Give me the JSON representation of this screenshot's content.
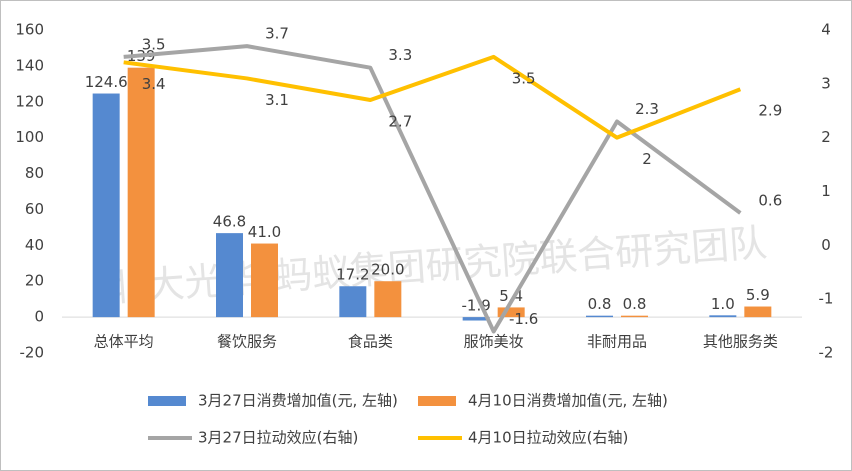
{
  "chart_data": {
    "type": "bar-line",
    "categories": [
      "总体平均",
      "餐饮服务",
      "食品类",
      "服饰美妆",
      "非耐用品",
      "其他服务类"
    ],
    "series": [
      {
        "name": "3月27日消费增加值(元, 左轴)",
        "type": "bar",
        "color": "#5589d0",
        "values": [
          124.6,
          46.8,
          17.2,
          -1.9,
          0.8,
          1.0
        ],
        "value_labels": [
          "124.6",
          "46.8",
          "17.2",
          "-1.9",
          "0.8",
          "1.0"
        ]
      },
      {
        "name": "4月10日消费增加值(元, 左轴)",
        "type": "bar",
        "color": "#f3913e",
        "values": [
          139,
          41.0,
          20.0,
          5.4,
          0.8,
          5.9
        ],
        "value_labels": [
          "139",
          "41.0",
          "20.0",
          "5.4",
          "0.8",
          "5.9"
        ]
      },
      {
        "name": "3月27日拉动效应(右轴)",
        "type": "line",
        "axis": "y2",
        "color": "#a5a5a5",
        "values": [
          3.5,
          3.7,
          3.3,
          -1.6,
          2.3,
          0.6
        ]
      },
      {
        "name": "4月10日拉动效应(右轴)",
        "type": "line",
        "axis": "y2",
        "color": "#ffc000",
        "values": [
          3.4,
          3.1,
          2.7,
          3.5,
          2.0,
          2.9
        ]
      }
    ],
    "ylim": [
      -20,
      160
    ],
    "yticks": [
      -20,
      0,
      20,
      40,
      60,
      80,
      100,
      120,
      140,
      160
    ],
    "y2lim": [
      -2,
      4
    ],
    "y2ticks": [
      -2,
      -1,
      0,
      1,
      2,
      3,
      4
    ],
    "watermark": "北大光华-蚂蚁集团研究院联合研究团队"
  }
}
